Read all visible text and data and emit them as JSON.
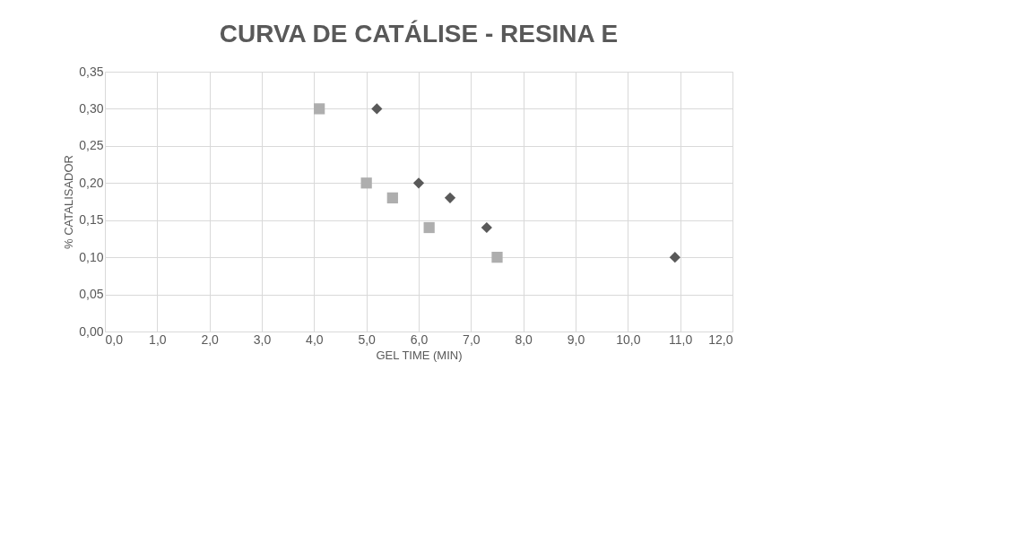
{
  "chart_data": {
    "type": "scatter",
    "title": "CURVA DE CATÁLISE - RESINA E",
    "xlabel": "GEL TIME (MIN)",
    "ylabel": "% CATALISADOR",
    "series": [
      {
        "color": "#595959",
        "marker": "diamond",
        "x": [
          5.2,
          6.0,
          6.6,
          7.3,
          10.9
        ],
        "values": [
          0.3,
          0.2,
          0.18,
          0.14,
          0.1
        ]
      },
      {
        "color": "#aeaeae",
        "marker": "square",
        "x": [
          4.1,
          5.0,
          5.5,
          6.2,
          7.5
        ],
        "values": [
          0.3,
          0.2,
          0.18,
          0.14,
          0.1
        ]
      }
    ],
    "xlim": [
      0,
      12
    ],
    "xticks": [
      {
        "value": 0,
        "label": "0,0"
      },
      {
        "value": 1,
        "label": "1,0"
      },
      {
        "value": 2,
        "label": "2,0"
      },
      {
        "value": 3,
        "label": "3,0"
      },
      {
        "value": 4,
        "label": "4,0"
      },
      {
        "value": 5,
        "label": "5,0"
      },
      {
        "value": 6,
        "label": "6,0"
      },
      {
        "value": 7,
        "label": "7,0"
      },
      {
        "value": 8,
        "label": "8,0"
      },
      {
        "value": 9,
        "label": "9,0"
      },
      {
        "value": 10,
        "label": "10,0"
      },
      {
        "value": 11,
        "label": "11,0"
      },
      {
        "value": 12,
        "label": "12,0"
      }
    ],
    "ylim": [
      0,
      0.35
    ],
    "yticks": [
      {
        "value": 0,
        "label": "0,00"
      },
      {
        "value": 0.05,
        "label": "0,05"
      },
      {
        "value": 0.1,
        "label": "0,10"
      },
      {
        "value": 0.15,
        "label": "0,15"
      },
      {
        "value": 0.2,
        "label": "0,20"
      },
      {
        "value": 0.25,
        "label": "0,25"
      },
      {
        "value": 0.3,
        "label": "0,30"
      },
      {
        "value": 0.35,
        "label": "0,35"
      }
    ],
    "grid": true
  }
}
